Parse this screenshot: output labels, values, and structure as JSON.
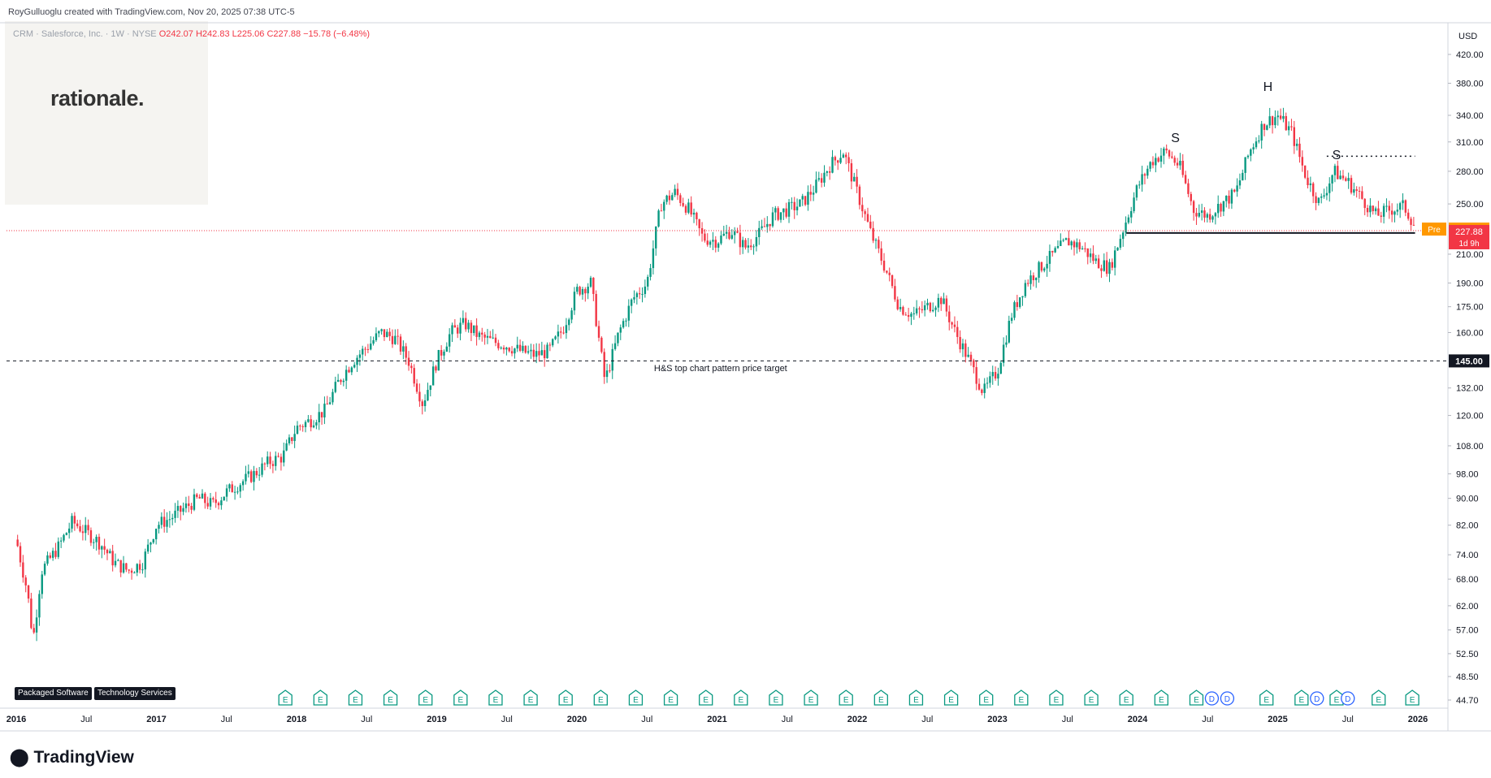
{
  "caption": {
    "author": "RoyGulluoglu created with TradingView.com,",
    "date": "Nov 20, 2025 07:38 UTC-5"
  },
  "brand": {
    "logo": "rationale."
  },
  "legend": {
    "symbol": "CRM · Salesforce, Inc. · 1W · NYSE",
    "open": "O242.07",
    "high": "H242.83",
    "low": "L225.06",
    "close": "C227.88",
    "change": "−15.78 (−6.48%)"
  },
  "tags": {
    "industry": "Packaged Software",
    "sector": "Technology Services"
  },
  "footer": {
    "logo_text": "TradingView",
    "logo_icon": "tradingview-icon"
  },
  "badges": {
    "pre_label": "Pre",
    "pre_value": "229.10",
    "last_value": "227.88",
    "countdown": "1d 9h",
    "target_value": "145.00"
  },
  "colors": {
    "up": "#089981",
    "down": "#f23645",
    "pre": "#ff9800",
    "event": "#089981",
    "dividend": "#2962ff"
  },
  "chart_data": {
    "type": "candlestick",
    "currency": "USD",
    "interval": "1W",
    "y_scale": "log",
    "ylim": [
      44.7,
      420.0
    ],
    "y_ticks": [
      "420.00",
      "380.00",
      "340.00",
      "310.00",
      "280.00",
      "250.00",
      "210.00",
      "190.00",
      "175.00",
      "160.00",
      "132.00",
      "120.00",
      "108.00",
      "98.00",
      "90.00",
      "82.00",
      "74.00",
      "68.00",
      "62.00",
      "57.00",
      "52.50",
      "48.50",
      "44.70"
    ],
    "x_ticks": [
      "2016",
      "Jul",
      "2017",
      "Jul",
      "2018",
      "Jul",
      "2019",
      "Jul",
      "2020",
      "Jul",
      "2021",
      "Jul",
      "2022",
      "Jul",
      "2023",
      "Jul",
      "2024",
      "Jul",
      "2025",
      "Jul",
      "2026"
    ],
    "series": [
      {
        "values": [
          [
            2016.0,
            78
          ],
          [
            2016.08,
            65
          ],
          [
            2016.12,
            55
          ],
          [
            2016.18,
            70
          ],
          [
            2016.3,
            76
          ],
          [
            2016.4,
            83
          ],
          [
            2016.5,
            80
          ],
          [
            2016.6,
            77
          ],
          [
            2016.7,
            72
          ],
          [
            2016.8,
            70
          ],
          [
            2016.9,
            72
          ],
          [
            2017.0,
            82
          ],
          [
            2017.1,
            84
          ],
          [
            2017.2,
            87
          ],
          [
            2017.3,
            90
          ],
          [
            2017.4,
            88
          ],
          [
            2017.5,
            92
          ],
          [
            2017.6,
            95
          ],
          [
            2017.7,
            98
          ],
          [
            2017.8,
            102
          ],
          [
            2017.9,
            104
          ],
          [
            2018.0,
            115
          ],
          [
            2018.1,
            118
          ],
          [
            2018.2,
            122
          ],
          [
            2018.3,
            135
          ],
          [
            2018.4,
            145
          ],
          [
            2018.5,
            152
          ],
          [
            2018.6,
            160
          ],
          [
            2018.7,
            157
          ],
          [
            2018.8,
            145
          ],
          [
            2018.9,
            125
          ],
          [
            2019.0,
            145
          ],
          [
            2019.1,
            160
          ],
          [
            2019.2,
            165
          ],
          [
            2019.3,
            158
          ],
          [
            2019.4,
            155
          ],
          [
            2019.5,
            153
          ],
          [
            2019.6,
            150
          ],
          [
            2019.7,
            148
          ],
          [
            2019.8,
            150
          ],
          [
            2019.9,
            162
          ],
          [
            2020.0,
            185
          ],
          [
            2020.1,
            190
          ],
          [
            2020.2,
            135
          ],
          [
            2020.3,
            160
          ],
          [
            2020.4,
            180
          ],
          [
            2020.5,
            190
          ],
          [
            2020.6,
            250
          ],
          [
            2020.7,
            260
          ],
          [
            2020.8,
            245
          ],
          [
            2020.9,
            222
          ],
          [
            2021.0,
            220
          ],
          [
            2021.1,
            228
          ],
          [
            2021.2,
            215
          ],
          [
            2021.3,
            225
          ],
          [
            2021.4,
            240
          ],
          [
            2021.5,
            245
          ],
          [
            2021.6,
            250
          ],
          [
            2021.7,
            265
          ],
          [
            2021.8,
            285
          ],
          [
            2021.9,
            300
          ],
          [
            2022.0,
            260
          ],
          [
            2022.1,
            225
          ],
          [
            2022.2,
            200
          ],
          [
            2022.3,
            175
          ],
          [
            2022.4,
            170
          ],
          [
            2022.5,
            175
          ],
          [
            2022.6,
            180
          ],
          [
            2022.7,
            160
          ],
          [
            2022.8,
            145
          ],
          [
            2022.9,
            130
          ],
          [
            2023.0,
            140
          ],
          [
            2023.1,
            170
          ],
          [
            2023.2,
            190
          ],
          [
            2023.3,
            200
          ],
          [
            2023.4,
            210
          ],
          [
            2023.5,
            220
          ],
          [
            2023.6,
            215
          ],
          [
            2023.7,
            205
          ],
          [
            2023.8,
            200
          ],
          [
            2023.9,
            230
          ],
          [
            2024.0,
            265
          ],
          [
            2024.1,
            290
          ],
          [
            2024.2,
            300
          ],
          [
            2024.3,
            285
          ],
          [
            2024.4,
            245
          ],
          [
            2024.5,
            240
          ],
          [
            2024.6,
            250
          ],
          [
            2024.7,
            260
          ],
          [
            2024.8,
            300
          ],
          [
            2024.9,
            330
          ],
          [
            2025.0,
            340
          ],
          [
            2025.1,
            320
          ],
          [
            2025.2,
            275
          ],
          [
            2025.3,
            250
          ],
          [
            2025.4,
            280
          ],
          [
            2025.5,
            270
          ],
          [
            2025.6,
            255
          ],
          [
            2025.7,
            240
          ],
          [
            2025.8,
            245
          ],
          [
            2025.9,
            248
          ],
          [
            2026.0,
            228
          ]
        ]
      }
    ],
    "annotations": [
      {
        "label": "S",
        "x": 2024.27,
        "y": 310
      },
      {
        "label": "H",
        "x": 2024.93,
        "y": 370
      },
      {
        "label": "S",
        "x": 2025.42,
        "y": 292
      },
      {
        "label": "H&S top chart pattern price target",
        "x": 2020.55,
        "y": 140
      }
    ],
    "lines": [
      {
        "kind": "neckline",
        "y": 226,
        "x_from": 2023.92,
        "x_to": 2025.98
      },
      {
        "kind": "shoulder-level",
        "y": 295,
        "x_from": 2025.35,
        "x_to": 2025.98
      },
      {
        "kind": "price-target",
        "y": 145
      },
      {
        "kind": "last-price",
        "y": 227.88
      }
    ],
    "events": [
      {
        "type": "E",
        "x": 2017.92
      },
      {
        "type": "E",
        "x": 2018.17
      },
      {
        "type": "E",
        "x": 2018.42
      },
      {
        "type": "E",
        "x": 2018.67
      },
      {
        "type": "E",
        "x": 2018.92
      },
      {
        "type": "E",
        "x": 2019.17
      },
      {
        "type": "E",
        "x": 2019.42
      },
      {
        "type": "E",
        "x": 2019.67
      },
      {
        "type": "E",
        "x": 2019.92
      },
      {
        "type": "E",
        "x": 2020.17
      },
      {
        "type": "E",
        "x": 2020.42
      },
      {
        "type": "E",
        "x": 2020.67
      },
      {
        "type": "E",
        "x": 2020.92
      },
      {
        "type": "E",
        "x": 2021.17
      },
      {
        "type": "E",
        "x": 2021.42
      },
      {
        "type": "E",
        "x": 2021.67
      },
      {
        "type": "E",
        "x": 2021.92
      },
      {
        "type": "E",
        "x": 2022.17
      },
      {
        "type": "E",
        "x": 2022.42
      },
      {
        "type": "E",
        "x": 2022.67
      },
      {
        "type": "E",
        "x": 2022.92
      },
      {
        "type": "E",
        "x": 2023.17
      },
      {
        "type": "E",
        "x": 2023.42
      },
      {
        "type": "E",
        "x": 2023.67
      },
      {
        "type": "E",
        "x": 2023.92
      },
      {
        "type": "E",
        "x": 2024.17
      },
      {
        "type": "E",
        "x": 2024.42
      },
      {
        "type": "D",
        "x": 2024.53
      },
      {
        "type": "D",
        "x": 2024.64
      },
      {
        "type": "E",
        "x": 2024.92
      },
      {
        "type": "E",
        "x": 2025.17
      },
      {
        "type": "D",
        "x": 2025.28
      },
      {
        "type": "E",
        "x": 2025.42
      },
      {
        "type": "D",
        "x": 2025.5
      },
      {
        "type": "E",
        "x": 2025.72
      },
      {
        "type": "E",
        "x": 2025.96
      }
    ]
  }
}
